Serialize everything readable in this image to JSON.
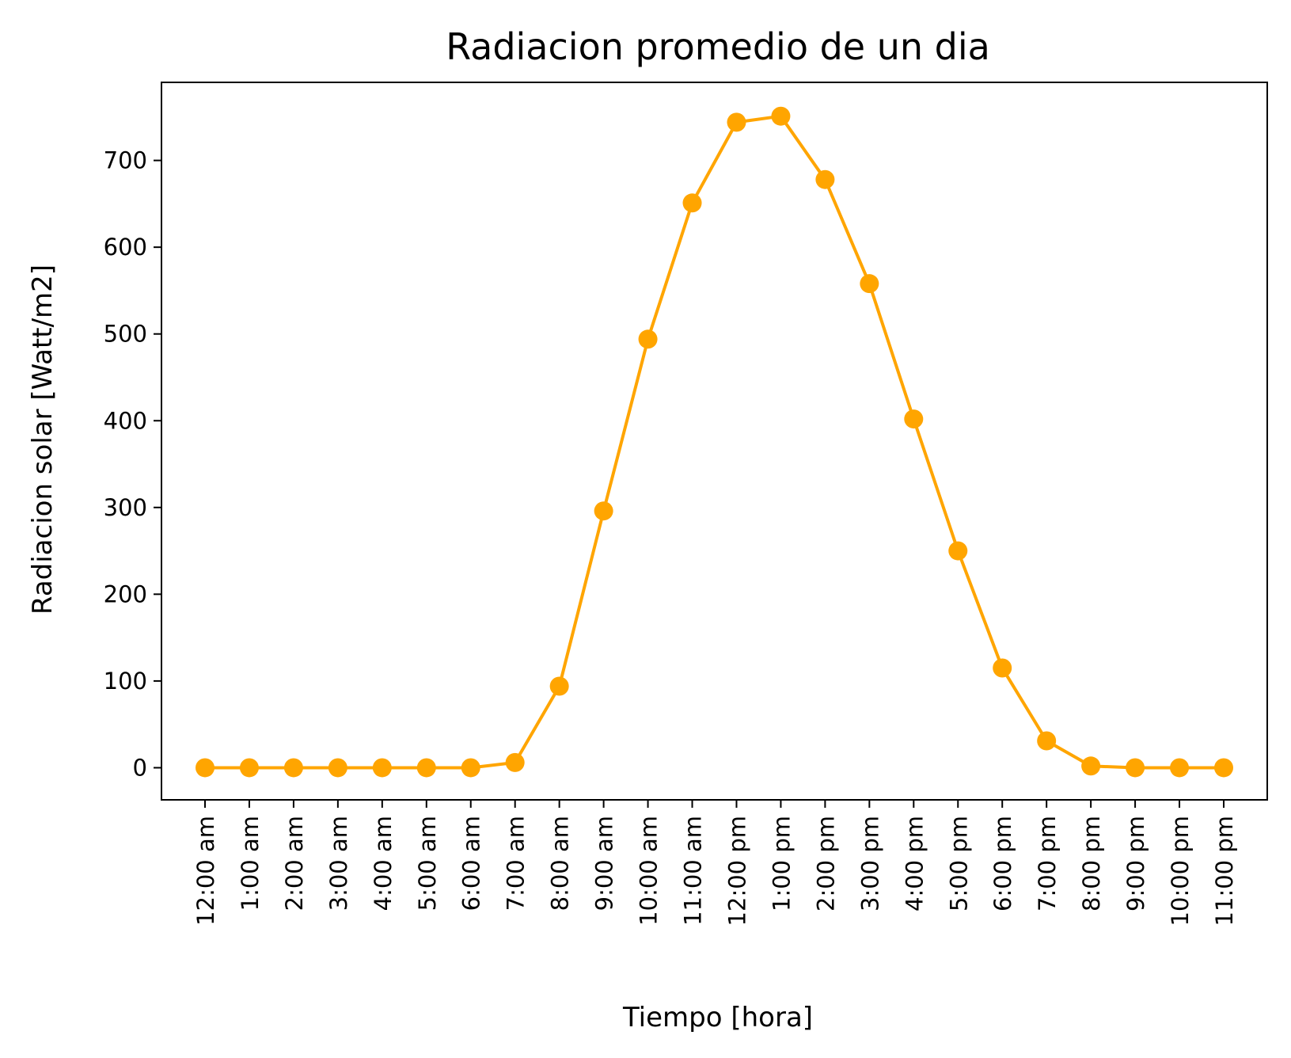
{
  "chart_data": {
    "type": "line",
    "title": "Radiacion promedio de un dia",
    "xlabel": "Tiempo [hora]",
    "ylabel": "Radiacion solar [Watt/m2]",
    "categories": [
      "12:00 am",
      "1:00 am",
      "2:00 am",
      "3:00 am",
      "4:00 am",
      "5:00 am",
      "6:00 am",
      "7:00 am",
      "8:00 am",
      "9:00 am",
      "10:00 am",
      "11:00 am",
      "12:00 pm",
      "1:00 pm",
      "2:00 pm",
      "3:00 pm",
      "4:00 pm",
      "5:00 pm",
      "6:00 pm",
      "7:00 pm",
      "8:00 pm",
      "9:00 pm",
      "10:00 pm",
      "11:00 pm"
    ],
    "series": [
      {
        "values": [
          0,
          0,
          0,
          0,
          0,
          0,
          0,
          6,
          94,
          296,
          494,
          651,
          744,
          751,
          678,
          558,
          402,
          250,
          115,
          31,
          2,
          0,
          0,
          0
        ],
        "color": "#FFA500",
        "marker": "circle"
      }
    ],
    "ylim": [
      -37,
      790
    ],
    "yticks": [
      0,
      100,
      200,
      300,
      400,
      500,
      600,
      700
    ],
    "grid": false,
    "legend": "none"
  }
}
